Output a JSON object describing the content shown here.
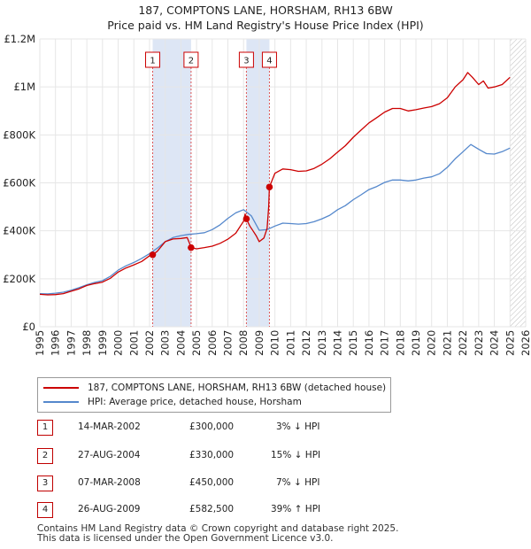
{
  "title_line1": "187, COMPTONS LANE, HORSHAM, RH13 6BW",
  "title_line2": "Price paid vs. HM Land Registry's House Price Index (HPI)",
  "legend": {
    "red_label": "187, COMPTONS LANE, HORSHAM, RH13 6BW (detached house)",
    "blue_label": "HPI: Average price, detached house, Horsham"
  },
  "colors": {
    "property": "#cc0000",
    "hpi": "#5588cc",
    "shade": "#dde6f5",
    "grid": "#e6e6e6"
  },
  "transactions": [
    {
      "num": "1",
      "date": "14-MAR-2002",
      "price": "£300,000",
      "hpi": "3% ↓ HPI"
    },
    {
      "num": "2",
      "date": "27-AUG-2004",
      "price": "£330,000",
      "hpi": "15% ↓ HPI"
    },
    {
      "num": "3",
      "date": "07-MAR-2008",
      "price": "£450,000",
      "hpi": "7% ↓ HPI"
    },
    {
      "num": "4",
      "date": "26-AUG-2009",
      "price": "£582,500",
      "hpi": "39% ↑ HPI"
    }
  ],
  "footer": {
    "line1": "Contains HM Land Registry data © Crown copyright and database right 2025.",
    "line2": "This data is licensed under the Open Government Licence v3.0."
  },
  "chart_data": {
    "type": "line",
    "title": "187, COMPTONS LANE, HORSHAM, RH13 6BW",
    "subtitle": "Price paid vs. HM Land Registry's House Price Index (HPI)",
    "xlim": [
      1995,
      2026
    ],
    "ylim": [
      0,
      1200000
    ],
    "x_ticks": [
      1995,
      1996,
      1997,
      1998,
      1999,
      2000,
      2001,
      2002,
      2003,
      2004,
      2005,
      2006,
      2007,
      2008,
      2009,
      2010,
      2011,
      2012,
      2013,
      2014,
      2015,
      2016,
      2017,
      2018,
      2019,
      2020,
      2021,
      2022,
      2023,
      2024,
      2025,
      2026
    ],
    "y_ticks": [
      0,
      200000,
      400000,
      600000,
      800000,
      1000000,
      1200000
    ],
    "y_tick_labels": [
      "£0",
      "£200K",
      "£400K",
      "£600K",
      "£800K",
      "£1M",
      "£1.2M"
    ],
    "shaded_ranges": [
      [
        2002.2,
        2004.65
      ],
      [
        2008.18,
        2009.65
      ]
    ],
    "hatched_from": 2025.0,
    "markers": [
      {
        "label": "1",
        "x": 2002.2,
        "y": 300000
      },
      {
        "label": "2",
        "x": 2004.65,
        "y": 330000
      },
      {
        "label": "3",
        "x": 2008.18,
        "y": 450000
      },
      {
        "label": "4",
        "x": 2009.65,
        "y": 582500
      }
    ],
    "series": [
      {
        "name": "187, COMPTONS LANE, HORSHAM, RH13 6BW (detached house)",
        "color": "#cc0000",
        "x": [
          1995,
          1995.5,
          1996,
          1996.5,
          1997,
          1997.5,
          1998,
          1998.5,
          1999,
          1999.5,
          2000,
          2000.5,
          2001,
          2001.5,
          2002,
          2002.2,
          2002.5,
          2003,
          2003.5,
          2004,
          2004.4,
          2004.6,
          2004.65,
          2005,
          2005.5,
          2006,
          2006.5,
          2007,
          2007.5,
          2008,
          2008.1,
          2008.18,
          2008.4,
          2008.6,
          2008.8,
          2009,
          2009.3,
          2009.5,
          2009.6,
          2009.65,
          2010,
          2010.5,
          2011,
          2011.5,
          2012,
          2012.5,
          2013,
          2013.5,
          2014,
          2014.5,
          2015,
          2015.5,
          2016,
          2016.5,
          2017,
          2017.5,
          2018,
          2018.5,
          2019,
          2019.5,
          2020,
          2020.5,
          2021,
          2021.5,
          2022,
          2022.3,
          2022.6,
          2023,
          2023.3,
          2023.6,
          2024,
          2024.5,
          2025
        ],
        "y": [
          135000,
          133000,
          134000,
          138000,
          148000,
          158000,
          172000,
          180000,
          186000,
          202000,
          228000,
          245000,
          258000,
          272000,
          296000,
          300000,
          315000,
          355000,
          366000,
          368000,
          372000,
          340000,
          330000,
          325000,
          330000,
          336000,
          348000,
          365000,
          390000,
          440000,
          470000,
          450000,
          420000,
          400000,
          380000,
          355000,
          370000,
          410000,
          500000,
          582500,
          640000,
          658000,
          655000,
          648000,
          650000,
          660000,
          678000,
          700000,
          728000,
          755000,
          790000,
          820000,
          850000,
          872000,
          895000,
          910000,
          910000,
          900000,
          905000,
          912000,
          918000,
          930000,
          955000,
          1000000,
          1030000,
          1060000,
          1040000,
          1010000,
          1025000,
          995000,
          1000000,
          1010000,
          1040000
        ]
      },
      {
        "name": "HPI: Average price, detached house, Horsham",
        "color": "#5588cc",
        "x": [
          1995,
          1995.5,
          1996,
          1996.5,
          1997,
          1997.5,
          1998,
          1998.5,
          1999,
          1999.5,
          2000,
          2000.5,
          2001,
          2001.5,
          2002,
          2002.5,
          2003,
          2003.5,
          2004,
          2004.5,
          2005,
          2005.5,
          2006,
          2006.5,
          2007,
          2007.5,
          2008,
          2008.5,
          2009,
          2009.5,
          2010,
          2010.5,
          2011,
          2011.5,
          2012,
          2012.5,
          2013,
          2013.5,
          2014,
          2014.5,
          2015,
          2015.5,
          2016,
          2016.5,
          2017,
          2017.5,
          2018,
          2018.5,
          2019,
          2019.5,
          2020,
          2020.5,
          2021,
          2021.5,
          2022,
          2022.5,
          2023,
          2023.5,
          2024,
          2024.5,
          2025
        ],
        "y": [
          138000,
          137000,
          140000,
          144000,
          152000,
          163000,
          175000,
          185000,
          192000,
          210000,
          236000,
          254000,
          268000,
          285000,
          305000,
          328000,
          355000,
          372000,
          380000,
          385000,
          388000,
          392000,
          405000,
          425000,
          452000,
          475000,
          488000,
          462000,
          402000,
          405000,
          420000,
          432000,
          430000,
          428000,
          430000,
          438000,
          450000,
          465000,
          488000,
          505000,
          530000,
          550000,
          572000,
          585000,
          602000,
          612000,
          612000,
          608000,
          612000,
          620000,
          625000,
          638000,
          665000,
          700000,
          730000,
          760000,
          740000,
          722000,
          720000,
          730000,
          745000
        ]
      }
    ]
  }
}
